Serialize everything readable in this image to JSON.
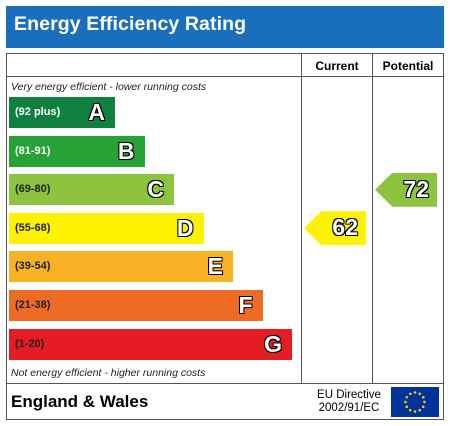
{
  "header": {
    "title": "Energy Efficiency Rating"
  },
  "columns": {
    "current": "Current",
    "potential": "Potential"
  },
  "notes": {
    "top": "Very energy efficient - lower running costs",
    "bottom": "Not energy efficient - higher running costs"
  },
  "footer": {
    "country": "England & Wales",
    "directive_line1": "EU Directive",
    "directive_line2": "2002/91/EC"
  },
  "chart_data": {
    "type": "bar",
    "bands": [
      {
        "range": "(92 plus)",
        "letter": "A",
        "color": "#0f8040",
        "text_color": "#ffffff"
      },
      {
        "range": "(81-91)",
        "letter": "B",
        "color": "#27a336",
        "text_color": "#ffffff"
      },
      {
        "range": "(69-80)",
        "letter": "C",
        "color": "#8cc43f",
        "text_color": "#222222"
      },
      {
        "range": "(55-68)",
        "letter": "D",
        "color": "#fff200",
        "text_color": "#222222"
      },
      {
        "range": "(39-54)",
        "letter": "E",
        "color": "#f7b124",
        "text_color": "#222222"
      },
      {
        "range": "(21-38)",
        "letter": "F",
        "color": "#ee6b24",
        "text_color": "#222222"
      },
      {
        "range": "(1-20)",
        "letter": "G",
        "color": "#e31d23",
        "text_color": "#222222"
      }
    ],
    "current": {
      "value": "62",
      "band": "D",
      "color": "#fff200"
    },
    "potential": {
      "value": "72",
      "band": "C",
      "color": "#8cc43f"
    }
  }
}
